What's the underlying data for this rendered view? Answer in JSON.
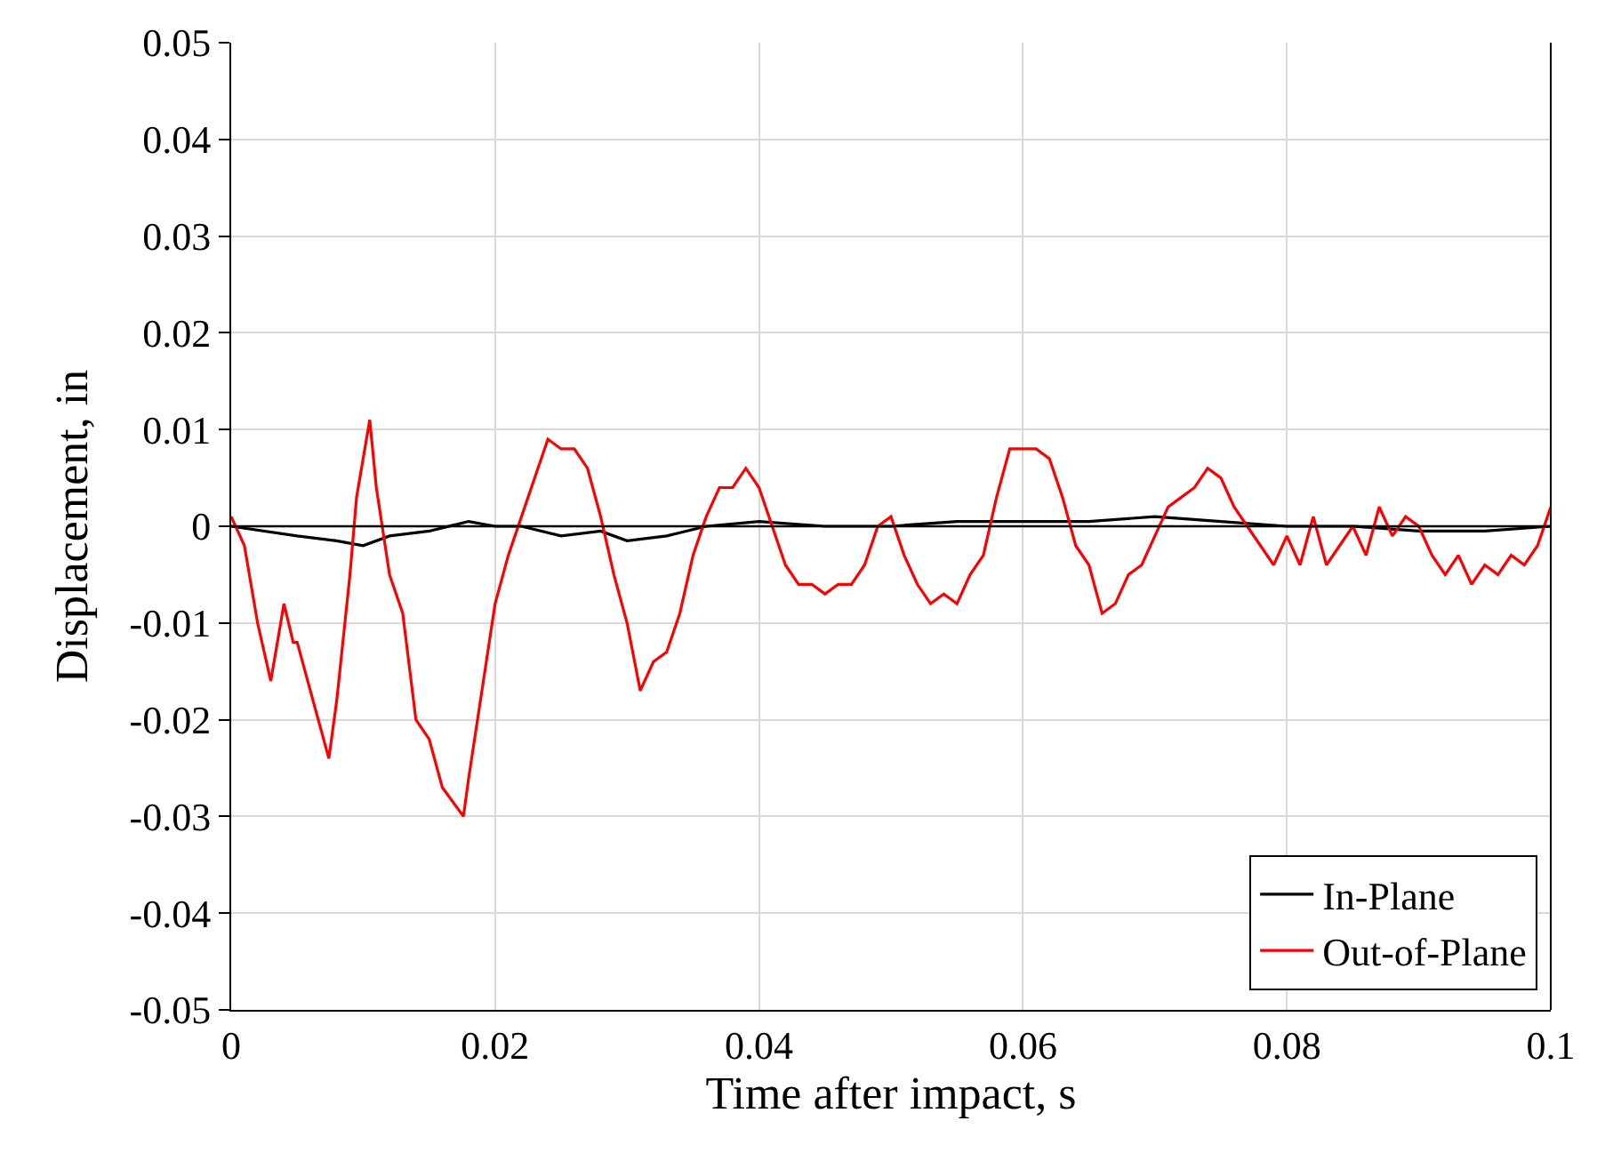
{
  "chart_data": {
    "type": "line",
    "xlabel": "Time after impact, s",
    "ylabel": "Displacement, in",
    "x": [
      0,
      0.001,
      0.002,
      0.003,
      0.004,
      0.0047,
      0.005,
      0.006,
      0.0074,
      0.008,
      0.009,
      0.0095,
      0.0105,
      0.011,
      0.012,
      0.013,
      0.014,
      0.015,
      0.016,
      0.0176,
      0.018,
      0.019,
      0.02,
      0.021,
      0.022,
      0.023,
      0.024,
      0.025,
      0.026,
      0.027,
      0.028,
      0.029,
      0.03,
      0.031,
      0.032,
      0.033,
      0.034,
      0.035,
      0.036,
      0.037,
      0.038,
      0.039,
      0.04,
      0.041,
      0.042,
      0.043,
      0.044,
      0.045,
      0.046,
      0.047,
      0.048,
      0.049,
      0.05,
      0.051,
      0.052,
      0.053,
      0.054,
      0.055,
      0.056,
      0.057,
      0.058,
      0.059,
      0.06,
      0.061,
      0.062,
      0.063,
      0.064,
      0.065,
      0.066,
      0.067,
      0.068,
      0.069,
      0.07,
      0.071,
      0.072,
      0.073,
      0.074,
      0.075,
      0.076,
      0.077,
      0.078,
      0.079,
      0.08,
      0.081,
      0.082,
      0.083,
      0.084,
      0.085,
      0.086,
      0.087,
      0.088,
      0.089,
      0.09,
      0.091,
      0.092,
      0.093,
      0.094,
      0.095,
      0.096,
      0.097,
      0.098,
      0.099,
      0.1
    ],
    "series": [
      {
        "name": "In-Plane",
        "color": "#000000",
        "x": [
          0,
          0.005,
          0.008,
          0.01,
          0.012,
          0.015,
          0.018,
          0.02,
          0.022,
          0.025,
          0.028,
          0.03,
          0.033,
          0.036,
          0.04,
          0.045,
          0.05,
          0.055,
          0.06,
          0.065,
          0.07,
          0.075,
          0.08,
          0.085,
          0.09,
          0.095,
          0.1
        ],
        "values": [
          0,
          -0.001,
          -0.0015,
          -0.002,
          -0.001,
          -0.0005,
          0.0005,
          0,
          0,
          -0.001,
          -0.0005,
          -0.0015,
          -0.001,
          0,
          0.0005,
          0,
          0,
          0.0005,
          0.0005,
          0.0005,
          0.001,
          0.0005,
          0,
          0,
          -0.0005,
          -0.0005,
          0
        ]
      },
      {
        "name": "Out-of-Plane",
        "color": "#ff0000",
        "values": [
          0.001,
          -0.002,
          -0.01,
          -0.016,
          -0.008,
          -0.012,
          -0.012,
          -0.017,
          -0.024,
          -0.018,
          -0.005,
          0.003,
          0.011,
          0.004,
          -0.005,
          -0.009,
          -0.02,
          -0.022,
          -0.027,
          -0.03,
          -0.026,
          -0.017,
          -0.008,
          -0.003,
          0.001,
          0.005,
          0.009,
          0.008,
          0.008,
          0.006,
          0.001,
          -0.005,
          -0.01,
          -0.017,
          -0.014,
          -0.013,
          -0.009,
          -0.003,
          0.001,
          0.004,
          0.004,
          0.006,
          0.004,
          0,
          -0.004,
          -0.006,
          -0.006,
          -0.007,
          -0.006,
          -0.006,
          -0.004,
          0,
          0.001,
          -0.003,
          -0.006,
          -0.008,
          -0.007,
          -0.008,
          -0.005,
          -0.003,
          0.003,
          0.008,
          0.008,
          0.008,
          0.007,
          0.003,
          -0.002,
          -0.004,
          -0.009,
          -0.008,
          -0.005,
          -0.004,
          -0.001,
          0.002,
          0.003,
          0.004,
          0.006,
          0.005,
          0.002,
          0,
          -0.002,
          -0.004,
          -0.001,
          -0.004,
          0.001,
          -0.004,
          -0.002,
          0,
          -0.003,
          0.002,
          -0.001,
          0.001,
          0,
          -0.003,
          -0.005,
          -0.003,
          -0.006,
          -0.004,
          -0.005,
          -0.003,
          -0.004,
          -0.002,
          0.002
        ]
      }
    ],
    "xlim": [
      0,
      0.1
    ],
    "xticks": [
      0,
      0.02,
      0.04,
      0.06,
      0.08,
      0.1
    ],
    "ylim": [
      -0.05,
      0.05
    ],
    "yticks": [
      -0.05,
      -0.04,
      -0.03,
      -0.02,
      -0.01,
      0,
      0.01,
      0.02,
      0.03,
      0.04,
      0.05
    ],
    "ref_lines": [
      {
        "axis": "y",
        "value": 0,
        "color": "#000000"
      }
    ],
    "grid": true,
    "legend": "bottom right",
    "marker": "none",
    "line_style": "solid"
  }
}
